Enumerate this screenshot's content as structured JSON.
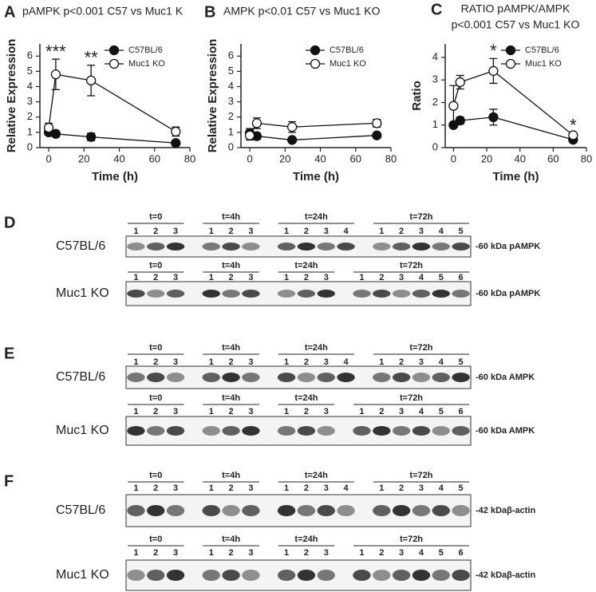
{
  "chart_data": [
    {
      "type": "line",
      "letter": "A",
      "title": "pAMPK p<0.001 C57 vs Muc1 K",
      "ylabel": "Relative Expression",
      "xlabel": "Time (h)",
      "x": [
        0,
        4,
        24,
        72
      ],
      "xlim": [
        -5,
        80
      ],
      "xticks": [
        0,
        20,
        40,
        60,
        80
      ],
      "ylim": [
        0,
        6.8
      ],
      "yticks": [
        0,
        1,
        2,
        3,
        4,
        5,
        6
      ],
      "series": [
        {
          "name": "C57BL/6",
          "color": "#111111",
          "filled": true,
          "values": [
            1.0,
            0.9,
            0.7,
            0.3
          ],
          "errors": [
            0.15,
            0.2,
            0.25,
            0.1
          ]
        },
        {
          "name": "Muc1 KO",
          "color": "#111111",
          "filled": false,
          "values": [
            1.3,
            4.8,
            4.4,
            1.05
          ],
          "errors": [
            0.3,
            1.0,
            1.0,
            0.3
          ]
        }
      ],
      "annotations": [
        {
          "text": "***",
          "x": 4
        },
        {
          "text": "**",
          "x": 24
        }
      ]
    },
    {
      "type": "line",
      "letter": "B",
      "title": "AMPK p<0.01 C57 vs Muc1 KO",
      "ylabel": "Relative Expression",
      "xlabel": "Time (h)",
      "x": [
        0,
        4,
        24,
        72
      ],
      "xlim": [
        -5,
        80
      ],
      "xticks": [
        0,
        20,
        40,
        60,
        80
      ],
      "ylim": [
        0,
        6.8
      ],
      "yticks": [
        0,
        1,
        2,
        3,
        4,
        5,
        6
      ],
      "series": [
        {
          "name": "C57BL/6",
          "color": "#111111",
          "filled": true,
          "values": [
            0.95,
            0.75,
            0.5,
            0.8
          ],
          "errors": [
            0.3,
            0.2,
            0.15,
            0.15
          ]
        },
        {
          "name": "Muc1 KO",
          "color": "#111111",
          "filled": false,
          "values": [
            0.8,
            1.6,
            1.35,
            1.6
          ],
          "errors": [
            0.3,
            0.35,
            0.35,
            0.25
          ]
        }
      ],
      "annotations": []
    },
    {
      "type": "line",
      "letter": "C",
      "title": "RATIO pAMPK/AMPK",
      "subtitle": "p<0.001 C57 vs Muc1 KO",
      "ylabel": "Ratio",
      "xlabel": "Time (h)",
      "x": [
        0,
        4,
        24,
        72
      ],
      "xlim": [
        -5,
        80
      ],
      "xticks": [
        0,
        20,
        40,
        60,
        80
      ],
      "ylim": [
        0,
        4.6
      ],
      "yticks": [
        0,
        1,
        2,
        3,
        4
      ],
      "series": [
        {
          "name": "C57BL/6",
          "color": "#111111",
          "filled": true,
          "values": [
            1.0,
            1.2,
            1.35,
            0.35
          ],
          "errors": [
            0.1,
            0.15,
            0.35,
            0.1
          ]
        },
        {
          "name": "Muc1 KO",
          "color": "#111111",
          "filled": false,
          "values": [
            1.85,
            2.9,
            3.4,
            0.55
          ],
          "errors": [
            0.9,
            0.3,
            0.55,
            0.1
          ]
        }
      ],
      "annotations": [
        {
          "text": "*",
          "x": 24
        },
        {
          "text": "*",
          "x": 72
        }
      ]
    }
  ],
  "blots": [
    {
      "letter": "D",
      "rows": [
        {
          "label": "C57BL/6",
          "marker": "-60 kDa pAMPK",
          "groups": [
            {
              "label": "t=0",
              "lanes": [
                1,
                2,
                3
              ]
            },
            {
              "label": "t=4h",
              "lanes": [
                1,
                2,
                3
              ]
            },
            {
              "label": "t=24h",
              "lanes": [
                1,
                2,
                3,
                4
              ]
            },
            {
              "label": "t=72h",
              "lanes": [
                1,
                2,
                3,
                4,
                5
              ]
            }
          ]
        },
        {
          "label": "Muc1 KO",
          "marker": "-60 kDa pAMPK",
          "groups": [
            {
              "label": "t=0",
              "lanes": [
                1,
                2,
                3
              ]
            },
            {
              "label": "t=4h",
              "lanes": [
                1,
                2,
                3
              ]
            },
            {
              "label": "t=24h",
              "lanes": [
                1,
                2,
                3
              ]
            },
            {
              "label": "t=72h",
              "lanes": [
                1,
                2,
                3,
                4,
                5,
                6
              ]
            }
          ]
        }
      ]
    },
    {
      "letter": "E",
      "rows": [
        {
          "label": "C57BL/6",
          "marker": "-60 kDa AMPK",
          "groups": [
            {
              "label": "t=0",
              "lanes": [
                1,
                2,
                3
              ]
            },
            {
              "label": "t=4h",
              "lanes": [
                1,
                2,
                3
              ]
            },
            {
              "label": "t=24h",
              "lanes": [
                1,
                2,
                3,
                4
              ]
            },
            {
              "label": "t=72h",
              "lanes": [
                1,
                2,
                3,
                4,
                5
              ]
            }
          ]
        },
        {
          "label": "Muc1 KO",
          "marker": "-60 kDa AMPK",
          "groups": [
            {
              "label": "t=0",
              "lanes": [
                1,
                2,
                3
              ]
            },
            {
              "label": "t=4h",
              "lanes": [
                1,
                2,
                3
              ]
            },
            {
              "label": "t=24h",
              "lanes": [
                1,
                2,
                3
              ]
            },
            {
              "label": "t=72h",
              "lanes": [
                1,
                2,
                3,
                4,
                5,
                6
              ]
            }
          ]
        }
      ]
    },
    {
      "letter": "F",
      "rows": [
        {
          "label": "C57BL/6",
          "marker": "-42 kDaβ-actin",
          "groups": [
            {
              "label": "t=0",
              "lanes": [
                1,
                2,
                3
              ]
            },
            {
              "label": "t=4h",
              "lanes": [
                1,
                2,
                3
              ]
            },
            {
              "label": "t=24h",
              "lanes": [
                1,
                2,
                3,
                4
              ]
            },
            {
              "label": "t=72h",
              "lanes": [
                1,
                2,
                3,
                4,
                5
              ]
            }
          ]
        },
        {
          "label": "Muc1 KO",
          "marker": "-42 kDaβ-actin",
          "groups": [
            {
              "label": "t=0",
              "lanes": [
                1,
                2,
                3
              ]
            },
            {
              "label": "t=4h",
              "lanes": [
                1,
                2,
                3
              ]
            },
            {
              "label": "t=24h",
              "lanes": [
                1,
                2,
                3
              ]
            },
            {
              "label": "t=72h",
              "lanes": [
                1,
                2,
                3,
                4,
                5,
                6
              ]
            }
          ]
        }
      ]
    }
  ]
}
